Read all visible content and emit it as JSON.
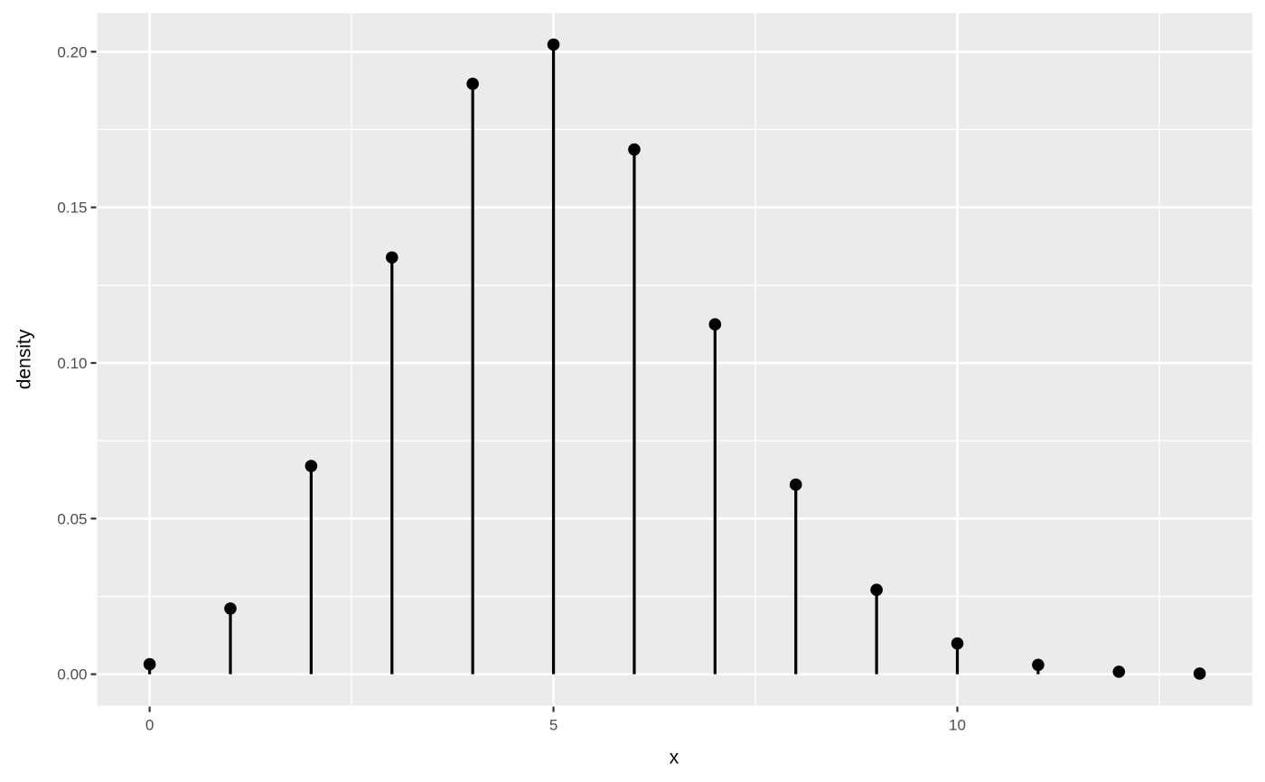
{
  "chart_data": {
    "type": "scatter",
    "variant": "stem",
    "title": "",
    "xlabel": "x",
    "ylabel": "density",
    "x": [
      0,
      1,
      2,
      3,
      4,
      5,
      6,
      7,
      8,
      9,
      10,
      11,
      12,
      13
    ],
    "y": [
      0.0032,
      0.0211,
      0.0669,
      0.1339,
      0.1897,
      0.2023,
      0.1686,
      0.1124,
      0.0609,
      0.0271,
      0.0099,
      0.003,
      0.0008,
      0.0002
    ],
    "xlim": [
      0,
      13
    ],
    "ylim": [
      0,
      0.2023
    ],
    "x_ticks": {
      "values": [
        0,
        5,
        10
      ],
      "labels": [
        "0",
        "5",
        "10"
      ]
    },
    "y_ticks": {
      "values": [
        0,
        0.05,
        0.1,
        0.15,
        0.2
      ],
      "labels": [
        "0.00",
        "0.05",
        "0.10",
        "0.15",
        "0.20"
      ]
    },
    "grid": "on",
    "legend": "none",
    "colors": {
      "panel_background": "#EBEBEB",
      "gridline": "#FFFFFF",
      "stem": "#000000",
      "point": "#000000",
      "tick_mark": "#333333",
      "tick_label": "#4D4D4D",
      "axis_title": "#000000"
    }
  }
}
